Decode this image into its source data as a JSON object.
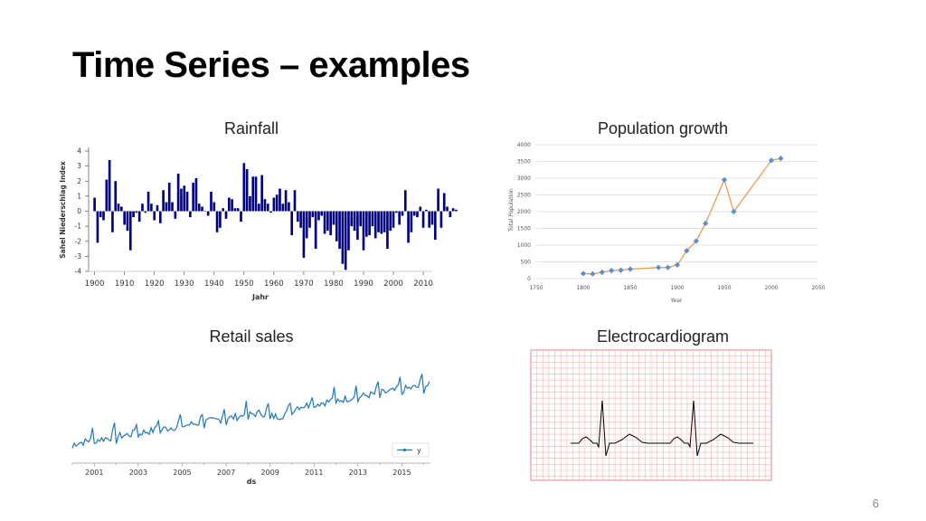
{
  "slide": {
    "title": "Time Series – examples",
    "page_number": "6"
  },
  "captions": {
    "rainfall": "Rainfall",
    "population": "Population growth",
    "retail": "Retail sales",
    "ecg": "Electrocardiogram"
  },
  "chart_data": [
    {
      "id": "rainfall",
      "type": "bar",
      "ylabel": "Sahel Niederschlag Index",
      "xlabel": "Jahr",
      "ylim": [
        -4,
        4
      ],
      "xlim": [
        1898,
        2013
      ],
      "x_ticks": [
        "1900",
        "1910",
        "1920",
        "1930",
        "1940",
        "1950",
        "1960",
        "1970",
        "1980",
        "1990",
        "2000",
        "2010"
      ],
      "y_ticks": [
        "4",
        "3",
        "2",
        "1",
        "0",
        "-1",
        "-2",
        "-3",
        "-4"
      ],
      "color": "#00007f",
      "start_year": 1900,
      "values": [
        0.9,
        -2.1,
        -0.4,
        -0.6,
        2.1,
        3.4,
        -1.4,
        2.0,
        0.5,
        0.3,
        -0.9,
        -1.3,
        -2.6,
        -0.4,
        -0.1,
        -0.7,
        0.5,
        -0.1,
        1.3,
        0.5,
        -0.6,
        0.4,
        -0.8,
        1.4,
        0.6,
        1.9,
        0.6,
        -0.5,
        2.5,
        1.5,
        1.7,
        1.3,
        -0.4,
        1.9,
        2.2,
        0.5,
        0.3,
        0.0,
        -0.3,
        1.3,
        0.6,
        -1.4,
        -1.1,
        0.2,
        -0.5,
        0.9,
        0.8,
        0.2,
        0.2,
        -0.7,
        3.2,
        2.8,
        1.0,
        2.3,
        2.3,
        0.5,
        2.4,
        0.8,
        0.5,
        -0.1,
        0.9,
        1.1,
        1.5,
        0.5,
        1.4,
        0.6,
        -1.6,
        1.4,
        -0.7,
        -1.1,
        -3.1,
        -1.8,
        -1.1,
        -0.4,
        -2.5,
        -0.6,
        -0.3,
        -1.5,
        -1.3,
        -1.6,
        -0.9,
        -2.0,
        -2.5,
        -3.5,
        -3.9,
        -2.6,
        -1.0,
        -1.3,
        -1.9,
        -1.0,
        -2.6,
        -1.7,
        -1.6,
        -1.0,
        -1.8,
        -1.4,
        -1.5,
        -1.4,
        -2.5,
        -1.3,
        -1.1,
        -0.1,
        -0.9,
        -0.3,
        1.4,
        -2.1,
        -1.4,
        -0.3,
        -0.4,
        0.3,
        -1.1,
        0.1,
        -1.1,
        -0.9,
        -1.9,
        1.5,
        -1.1,
        1.2,
        0.3,
        -0.4,
        0.2,
        0.1
      ]
    },
    {
      "id": "population",
      "type": "line",
      "ylabel": "Total Population",
      "xlabel": "Year",
      "xlim": [
        1750,
        2050
      ],
      "ylim": [
        0,
        4000
      ],
      "x_ticks": [
        1750,
        1800,
        1850,
        1900,
        1950,
        2000,
        2050
      ],
      "y_ticks": [
        0,
        500,
        1000,
        1500,
        2000,
        2500,
        3000,
        3500,
        4000
      ],
      "line_color": "#ed9a4c",
      "marker_color": "#5b8fd0",
      "x": [
        1800,
        1810,
        1820,
        1830,
        1840,
        1850,
        1880,
        1890,
        1900,
        1910,
        1920,
        1930,
        1950,
        1960,
        2000,
        2010
      ],
      "y": [
        150,
        140,
        190,
        240,
        250,
        285,
        330,
        330,
        410,
        830,
        1120,
        1650,
        2950,
        2000,
        3530,
        3590
      ]
    },
    {
      "id": "retail",
      "type": "line",
      "xlabel": "ds",
      "legend": "y",
      "legend_position": "bottom-right",
      "line_color": "#1f77b4",
      "x_ticks": [
        "2001",
        "2003",
        "2005",
        "2007",
        "2009",
        "2011",
        "2013",
        "2015"
      ],
      "xlim": [
        2000.0,
        2016.3
      ]
    },
    {
      "id": "ecg",
      "type": "line",
      "grid_color": "#f2b3b3",
      "line_color": "#000000"
    }
  ]
}
